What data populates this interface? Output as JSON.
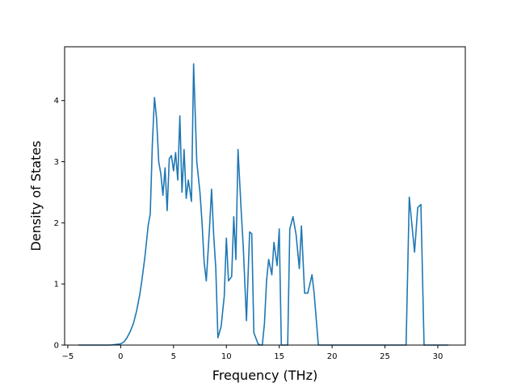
{
  "chart_data": {
    "type": "line",
    "xlabel": "Frequency (THz)",
    "ylabel": "Density of States",
    "xlim": [
      -5.3,
      32.6
    ],
    "ylim": [
      0,
      4.88
    ],
    "xticks": [
      -5,
      0,
      5,
      10,
      15,
      20,
      25,
      30
    ],
    "yticks": [
      0,
      1,
      2,
      3,
      4
    ],
    "grid": false,
    "series": [
      {
        "color": "#1f77b4",
        "x": [
          -4.0,
          -3.0,
          -2.0,
          -1.0,
          -0.5,
          0.0,
          0.3,
          0.6,
          0.9,
          1.2,
          1.5,
          1.8,
          2.0,
          2.3,
          2.6,
          2.8,
          3.0,
          3.2,
          3.4,
          3.6,
          3.8,
          4.0,
          4.2,
          4.4,
          4.6,
          4.8,
          5.0,
          5.2,
          5.4,
          5.6,
          5.8,
          6.0,
          6.2,
          6.4,
          6.7,
          6.9,
          7.2,
          7.5,
          7.7,
          7.9,
          8.1,
          8.4,
          8.6,
          8.8,
          9.0,
          9.2,
          9.5,
          9.8,
          10.0,
          10.2,
          10.5,
          10.7,
          10.9,
          11.1,
          11.4,
          11.6,
          11.9,
          12.2,
          12.4,
          12.6,
          13.0,
          13.2,
          13.4,
          13.6,
          13.8,
          14.0,
          14.3,
          14.5,
          14.8,
          15.0,
          15.2,
          15.8,
          16.0,
          16.3,
          16.6,
          16.9,
          17.1,
          17.4,
          17.7,
          18.1,
          18.3,
          18.7,
          19.0,
          20.0,
          25.0,
          27.0,
          27.3,
          27.8,
          28.1,
          28.4,
          28.7,
          29.0,
          30.0,
          31.0
        ],
        "y": [
          0,
          0,
          0,
          0,
          0.01,
          0.02,
          0.05,
          0.12,
          0.22,
          0.35,
          0.55,
          0.82,
          1.05,
          1.45,
          1.95,
          2.15,
          3.3,
          4.05,
          3.7,
          3.0,
          2.8,
          2.45,
          2.9,
          2.2,
          3.05,
          3.1,
          2.85,
          3.15,
          2.7,
          3.75,
          2.5,
          3.2,
          2.4,
          2.7,
          2.35,
          4.6,
          3.0,
          2.5,
          2.0,
          1.35,
          1.05,
          1.9,
          2.55,
          1.8,
          1.25,
          0.12,
          0.3,
          0.8,
          1.75,
          1.05,
          1.12,
          2.1,
          1.4,
          3.2,
          2.2,
          1.6,
          0.4,
          1.85,
          1.82,
          0.2,
          0.02,
          0.0,
          0.0,
          0.35,
          1.05,
          1.4,
          1.15,
          1.68,
          1.3,
          1.9,
          0.0,
          0.0,
          1.9,
          2.1,
          1.8,
          1.25,
          1.95,
          0.85,
          0.85,
          1.15,
          0.85,
          0.0,
          0.0,
          0.0,
          0.0,
          0.0,
          2.42,
          1.52,
          2.25,
          2.3,
          0.0,
          0.0,
          0.0,
          0.0
        ]
      }
    ]
  }
}
